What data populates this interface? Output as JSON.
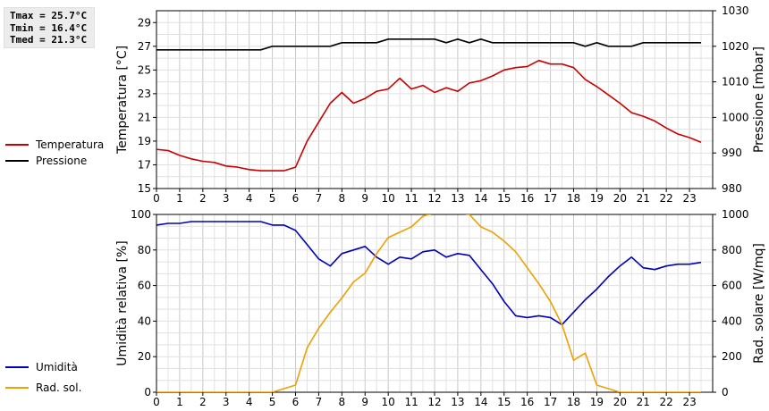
{
  "stats": {
    "tmax": "Tmax = 25.7°C",
    "tmin": "Tmin = 16.4°C",
    "tmed": "Tmed = 21.3°C"
  },
  "legend_top": [
    {
      "label": "Temperatura",
      "color": "#cc0000"
    },
    {
      "label": "Pressione",
      "color": "#000000"
    }
  ],
  "legend_bottom": [
    {
      "label": "Umidità",
      "color": "#0000bb"
    },
    {
      "label": "Rad. sol.",
      "color": "#f0a000"
    }
  ],
  "chart_data": [
    {
      "type": "line",
      "ylabel": "Temperatura [°C]",
      "y2label": "Pressione [mbar]",
      "xlim": [
        0,
        24
      ],
      "ylim": [
        15,
        30
      ],
      "y2lim": [
        980,
        1030
      ],
      "x_ticks": [
        0,
        1,
        2,
        3,
        4,
        5,
        6,
        7,
        8,
        9,
        10,
        11,
        12,
        13,
        14,
        15,
        16,
        17,
        18,
        19,
        20,
        21,
        22,
        23
      ],
      "y_ticks": [
        15,
        17,
        19,
        21,
        23,
        25,
        27,
        29
      ],
      "y2_ticks": [
        980,
        990,
        1000,
        1010,
        1020,
        1030
      ],
      "grid": true,
      "series": [
        {
          "name": "Temperatura",
          "axis": "left",
          "color": "#cc0000",
          "x": [
            0,
            0.5,
            1,
            1.5,
            2,
            2.5,
            3,
            3.5,
            4,
            4.5,
            5,
            5.5,
            6,
            6.5,
            7,
            7.5,
            8,
            8.5,
            9,
            9.5,
            10,
            10.5,
            11,
            11.5,
            12,
            12.5,
            13,
            13.5,
            14,
            14.5,
            15,
            15.5,
            16,
            16.5,
            17,
            17.5,
            18,
            18.5,
            19,
            19.5,
            20,
            20.5,
            21,
            21.5,
            22,
            22.5,
            23,
            23.5
          ],
          "y": [
            18.3,
            18.2,
            17.8,
            17.5,
            17.3,
            17.2,
            16.9,
            16.8,
            16.6,
            16.5,
            16.5,
            16.5,
            16.8,
            19.0,
            20.6,
            22.2,
            23.1,
            22.2,
            22.6,
            23.2,
            23.4,
            24.3,
            23.4,
            23.7,
            23.1,
            23.5,
            23.2,
            23.9,
            24.1,
            24.5,
            25.0,
            25.2,
            25.3,
            25.8,
            25.5,
            25.5,
            25.2,
            24.2,
            23.6,
            22.9,
            22.2,
            21.4,
            21.1,
            20.7,
            20.1,
            19.6,
            19.3,
            18.9
          ]
        },
        {
          "name": "Pressione",
          "axis": "right",
          "color": "#000000",
          "x": [
            0,
            0.5,
            1,
            1.5,
            2,
            2.5,
            3,
            3.5,
            4,
            4.5,
            5,
            5.5,
            6,
            6.5,
            7,
            7.5,
            8,
            8.5,
            9,
            9.5,
            10,
            10.5,
            11,
            11.5,
            12,
            12.5,
            13,
            13.5,
            14,
            14.5,
            15,
            15.5,
            16,
            16.5,
            17,
            17.5,
            18,
            18.5,
            19,
            19.5,
            20,
            20.5,
            21,
            21.5,
            22,
            22.5,
            23,
            23.5
          ],
          "y": [
            1019,
            1019,
            1019,
            1019,
            1019,
            1019,
            1019,
            1019,
            1019,
            1019,
            1020,
            1020,
            1020,
            1020,
            1020,
            1020,
            1021,
            1021,
            1021,
            1021,
            1022,
            1022,
            1022,
            1022,
            1022,
            1021,
            1022,
            1021,
            1022,
            1021,
            1021,
            1021,
            1021,
            1021,
            1021,
            1021,
            1021,
            1020,
            1021,
            1020,
            1020,
            1020,
            1021,
            1021,
            1021,
            1021,
            1021,
            1021
          ]
        }
      ]
    },
    {
      "type": "line",
      "ylabel": "Umidità relativa [%]",
      "y2label": "Rad. solare [W/mq]",
      "xlim": [
        0,
        24
      ],
      "ylim": [
        0,
        100
      ],
      "y2lim": [
        0,
        1000
      ],
      "x_ticks": [
        0,
        1,
        2,
        3,
        4,
        5,
        6,
        7,
        8,
        9,
        10,
        11,
        12,
        13,
        14,
        15,
        16,
        17,
        18,
        19,
        20,
        21,
        22,
        23
      ],
      "y_ticks": [
        0,
        20,
        40,
        60,
        80,
        100
      ],
      "y2_ticks": [
        0,
        200,
        400,
        600,
        800,
        1000
      ],
      "grid": true,
      "series": [
        {
          "name": "Umidità",
          "axis": "left",
          "color": "#0000bb",
          "x": [
            0,
            0.5,
            1,
            1.5,
            2,
            2.5,
            3,
            3.5,
            4,
            4.5,
            5,
            5.5,
            6,
            6.5,
            7,
            7.5,
            8,
            8.5,
            9,
            9.5,
            10,
            10.5,
            11,
            11.5,
            12,
            12.5,
            13,
            13.5,
            14,
            14.5,
            15,
            15.5,
            16,
            16.5,
            17,
            17.5,
            18,
            18.5,
            19,
            19.5,
            20,
            20.5,
            21,
            21.5,
            22,
            22.5,
            23,
            23.5
          ],
          "y": [
            94,
            95,
            95,
            96,
            96,
            96,
            96,
            96,
            96,
            96,
            94,
            94,
            91,
            83,
            75,
            71,
            78,
            80,
            82,
            76,
            72,
            76,
            75,
            79,
            80,
            76,
            78,
            77,
            69,
            61,
            51,
            43,
            42,
            43,
            42,
            38,
            45,
            52,
            58,
            65,
            71,
            76,
            70,
            69,
            71,
            72,
            72,
            73
          ]
        },
        {
          "name": "Rad. sol.",
          "axis": "right",
          "color": "#f0a000",
          "x": [
            0,
            0.5,
            1,
            1.5,
            2,
            2.5,
            3,
            3.5,
            4,
            4.5,
            5,
            5.5,
            6,
            6.5,
            7,
            7.5,
            8,
            8.5,
            9,
            9.5,
            10,
            10.5,
            11,
            11.5,
            12,
            12.5,
            13,
            13.5,
            14,
            14.5,
            15,
            15.5,
            16,
            16.5,
            17,
            17.5,
            18,
            18.5,
            19,
            19.5,
            20,
            20.5,
            21,
            21.5,
            22,
            22.5,
            23,
            23.5
          ],
          "y": [
            0,
            0,
            0,
            0,
            0,
            0,
            0,
            0,
            0,
            0,
            0,
            20,
            40,
            250,
            360,
            450,
            530,
            620,
            670,
            780,
            870,
            900,
            930,
            990,
            1010,
            1010,
            1010,
            1000,
            930,
            900,
            850,
            790,
            700,
            610,
            510,
            380,
            180,
            220,
            40,
            20,
            0,
            0,
            0,
            0,
            0,
            0,
            0,
            0
          ]
        }
      ]
    }
  ]
}
